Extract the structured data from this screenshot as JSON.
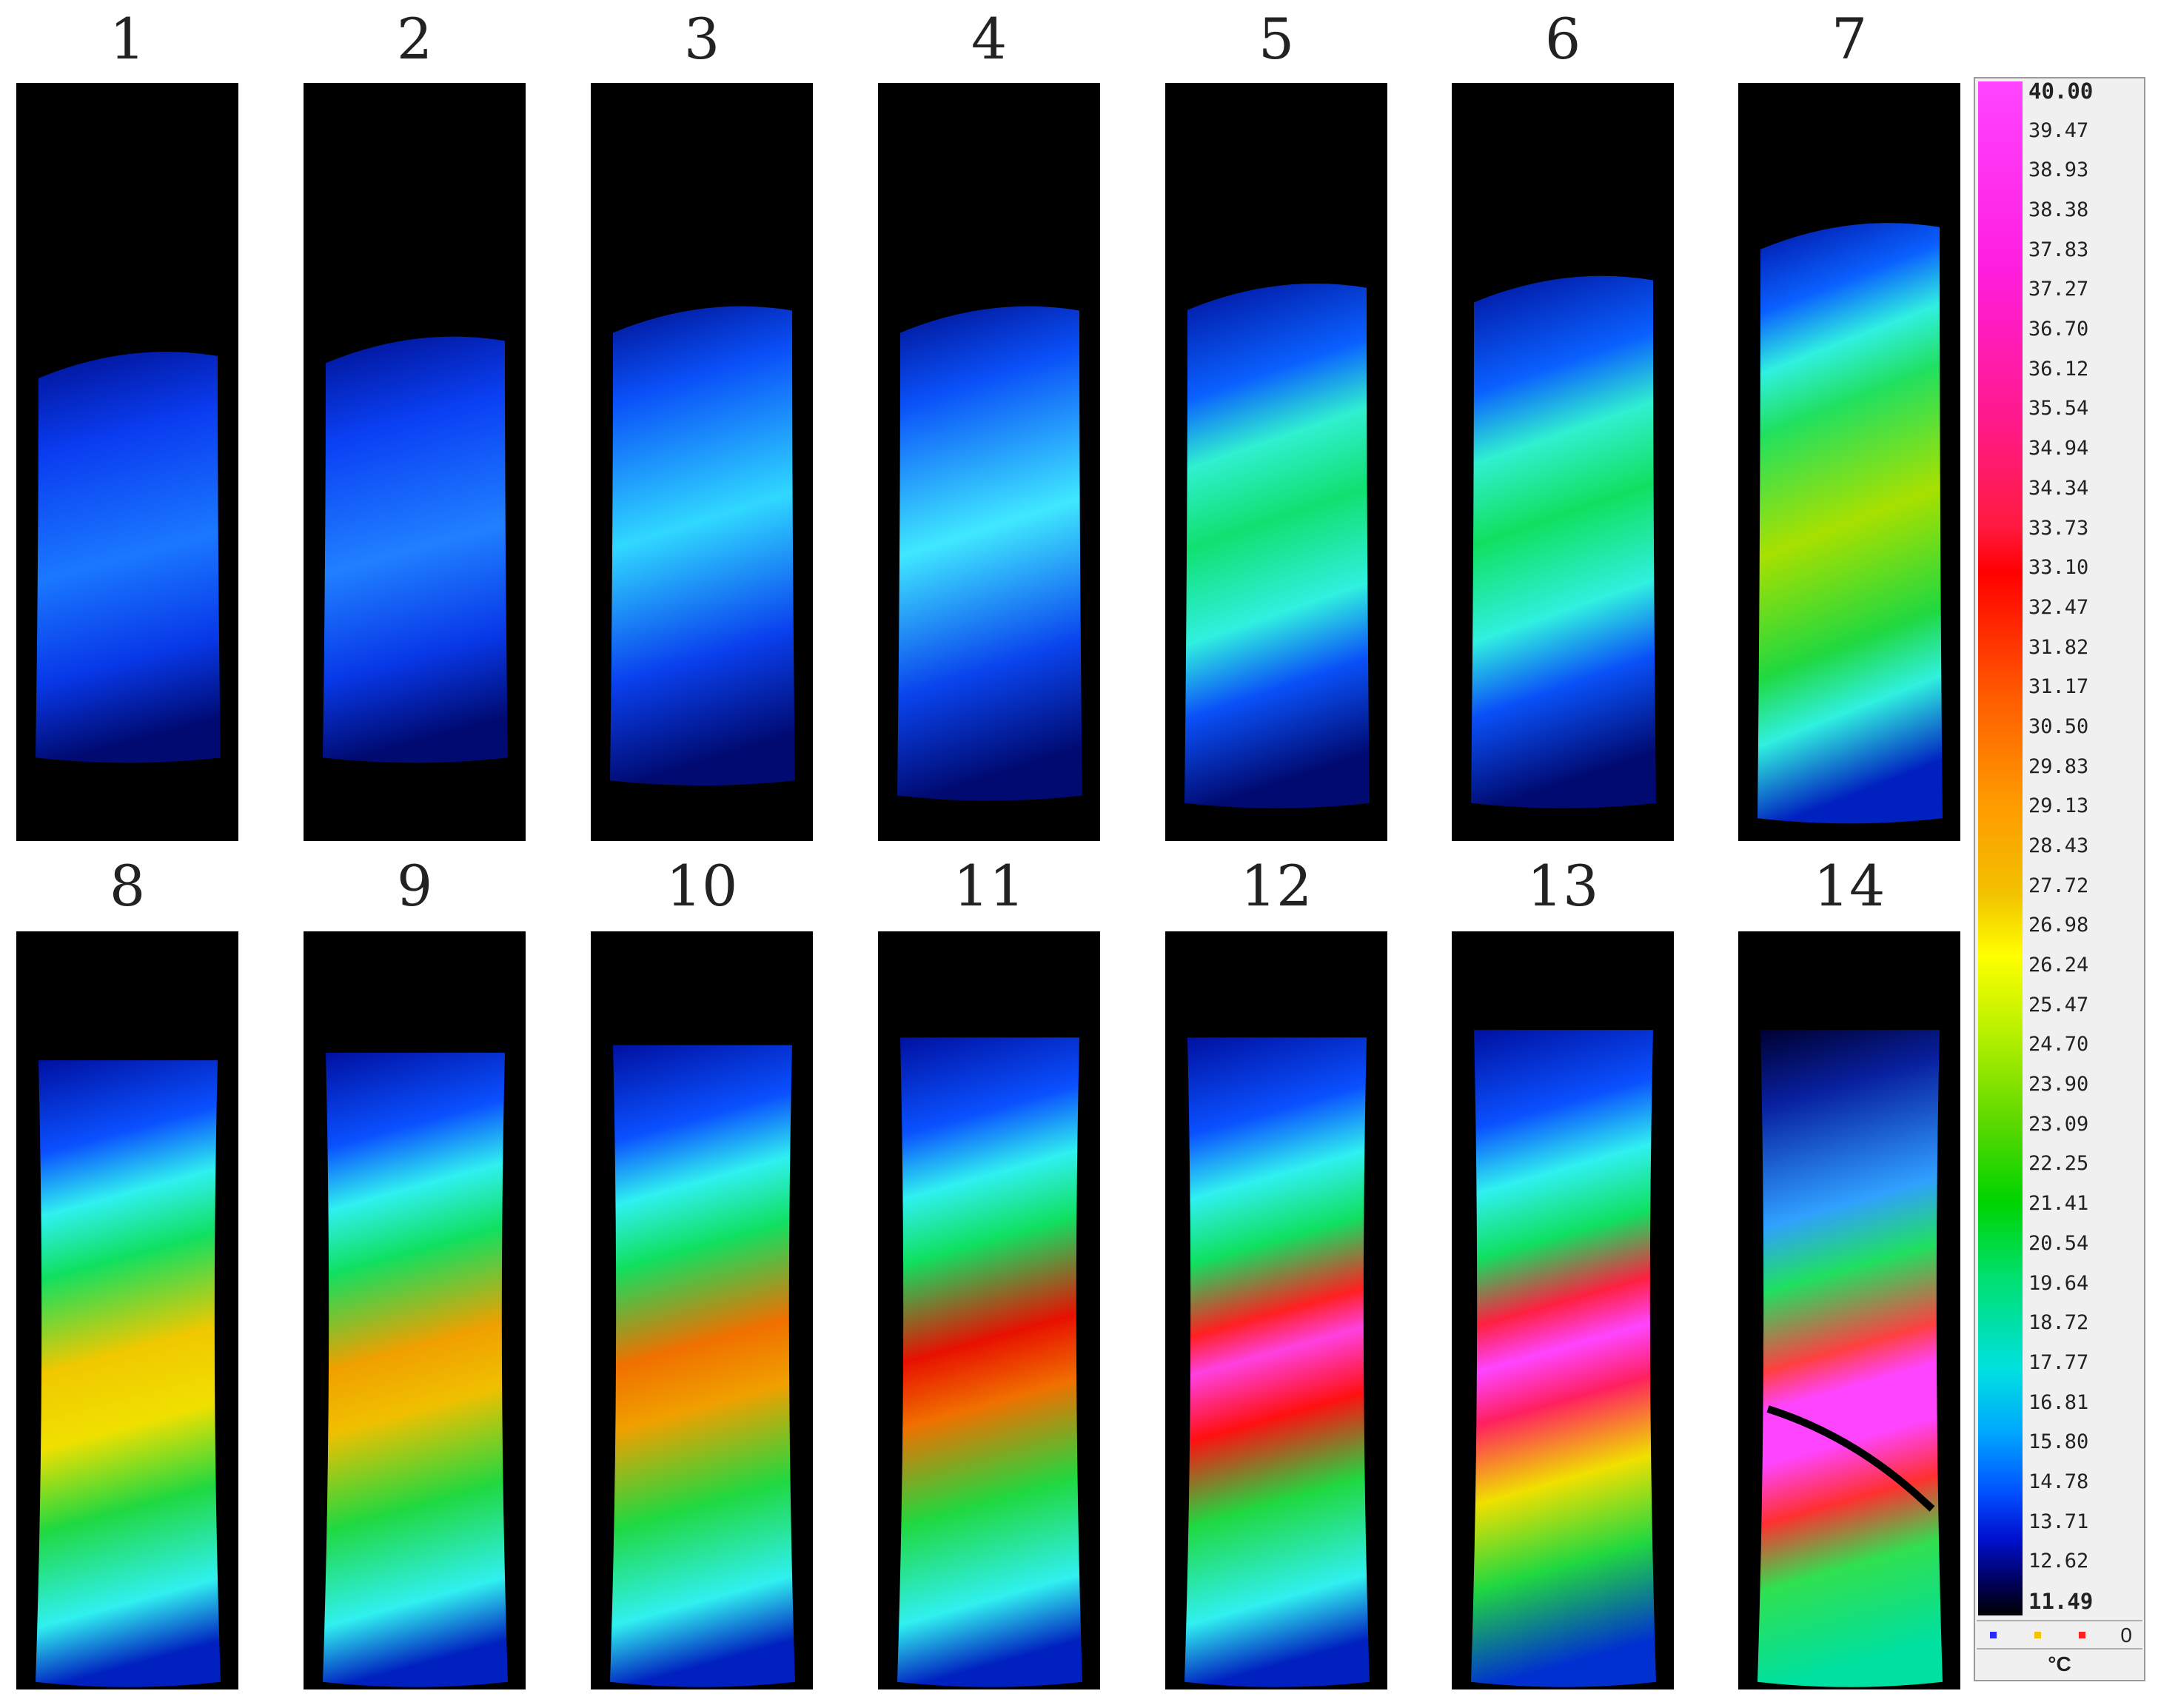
{
  "panels": [
    {
      "label": "1"
    },
    {
      "label": "2"
    },
    {
      "label": "3"
    },
    {
      "label": "4"
    },
    {
      "label": "5"
    },
    {
      "label": "6"
    },
    {
      "label": "7"
    },
    {
      "label": "8"
    },
    {
      "label": "9"
    },
    {
      "label": "10"
    },
    {
      "label": "11"
    },
    {
      "label": "12"
    },
    {
      "label": "13"
    },
    {
      "label": "14"
    }
  ],
  "scale": {
    "ticks": [
      "40.00",
      "39.47",
      "38.93",
      "38.38",
      "37.83",
      "37.27",
      "36.70",
      "36.12",
      "35.54",
      "34.94",
      "34.34",
      "33.73",
      "33.10",
      "32.47",
      "31.82",
      "31.17",
      "30.50",
      "29.83",
      "29.13",
      "28.43",
      "27.72",
      "26.98",
      "26.24",
      "25.47",
      "24.70",
      "23.90",
      "23.09",
      "22.25",
      "21.41",
      "20.54",
      "19.64",
      "18.72",
      "17.77",
      "16.81",
      "15.80",
      "14.78",
      "13.71",
      "12.62",
      "11.49"
    ],
    "zero_label": "0",
    "unit": "°C",
    "foot_squares": [
      "#2a2aff",
      "#f2c200",
      "#ff2020"
    ]
  }
}
